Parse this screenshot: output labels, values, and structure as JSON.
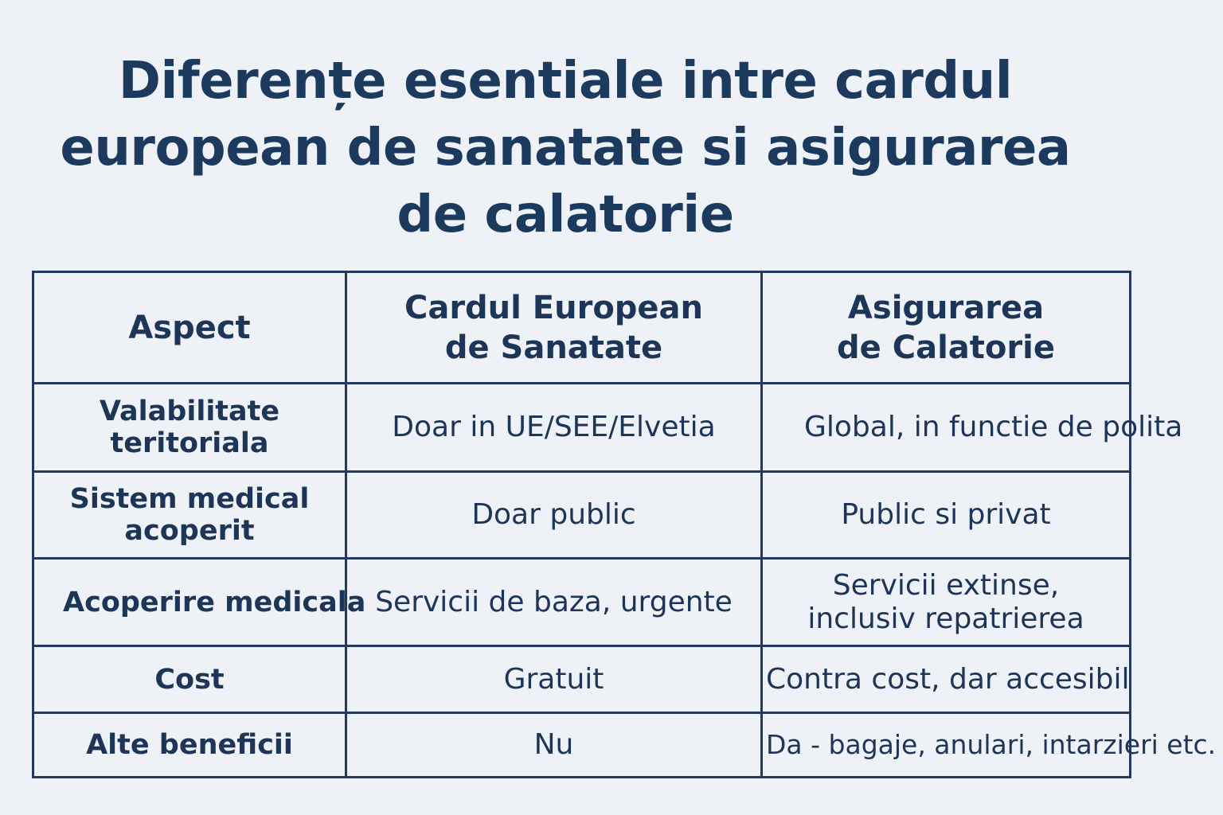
{
  "title": {
    "line1": "Diferențe esentiale intre cardul",
    "line2": "european de sanatate si asigurarea",
    "line3": "de calatorie"
  },
  "table": {
    "headers": [
      {
        "line1": "Aspect",
        "line2": ""
      },
      {
        "line1": "Cardul European",
        "line2": "de Sanatate"
      },
      {
        "line1": "Asigurarea",
        "line2": "de Calatorie"
      }
    ],
    "rows": [
      {
        "aspect": {
          "line1": "Valabilitate",
          "line2": "teritoriala"
        },
        "card": {
          "line1": "Doar in UE/SEE/Elvetia",
          "line2": ""
        },
        "insurance": {
          "line1": "Global, in functie de polita",
          "line2": ""
        }
      },
      {
        "aspect": {
          "line1": "Sistem medical",
          "line2": "acoperit"
        },
        "card": {
          "line1": "Doar public",
          "line2": ""
        },
        "insurance": {
          "line1": "Public si privat",
          "line2": ""
        }
      },
      {
        "aspect": {
          "line1": "Acoperire medicala",
          "line2": ""
        },
        "card": {
          "line1": "Servicii de baza, urgente",
          "line2": ""
        },
        "insurance": {
          "line1": "Servicii extinse,",
          "line2": "inclusiv repatrierea"
        }
      },
      {
        "aspect": {
          "line1": "Cost",
          "line2": ""
        },
        "card": {
          "line1": "Gratuit",
          "line2": ""
        },
        "insurance": {
          "line1": "Contra cost, dar accesibil",
          "line2": ""
        }
      },
      {
        "aspect": {
          "line1": "Alte beneficii",
          "line2": ""
        },
        "card": {
          "line1": "Nu",
          "line2": ""
        },
        "insurance": {
          "line1": "Da - bagaje, anulari, intarzieri etc.",
          "line2": ""
        }
      }
    ]
  }
}
